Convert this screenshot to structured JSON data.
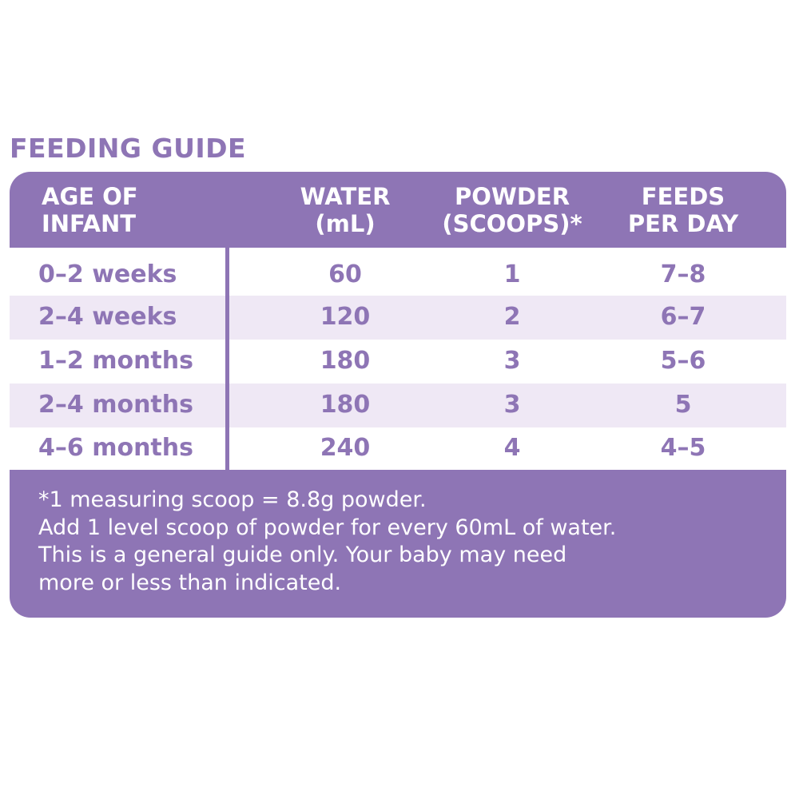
{
  "title": "FEEDING GUIDE",
  "table": {
    "headers": [
      [
        "AGE OF",
        "INFANT"
      ],
      [
        "WATER",
        "(mL)"
      ],
      [
        "POWDER",
        "(SCOOPS)*"
      ],
      [
        "FEEDS",
        "PER DAY"
      ]
    ],
    "rows": [
      [
        "0–2 weeks",
        "60",
        "1",
        "7–8"
      ],
      [
        "2–4 weeks",
        "120",
        "2",
        "6–7"
      ],
      [
        "1–2 months",
        "180",
        "3",
        "5–6"
      ],
      [
        "2–4 months",
        "180",
        "3",
        "5"
      ],
      [
        "4–6 months",
        "240",
        "4",
        "4–5"
      ]
    ]
  },
  "footnotes": [
    "*1 measuring scoop = 8.8g powder.",
    "Add 1 level scoop of powder for every 60mL of water.",
    "This is a general guide only. Your baby may need",
    "more or less than indicated."
  ],
  "colors": {
    "accent": "#8e75b5",
    "row_alt": "#efe8f5"
  }
}
